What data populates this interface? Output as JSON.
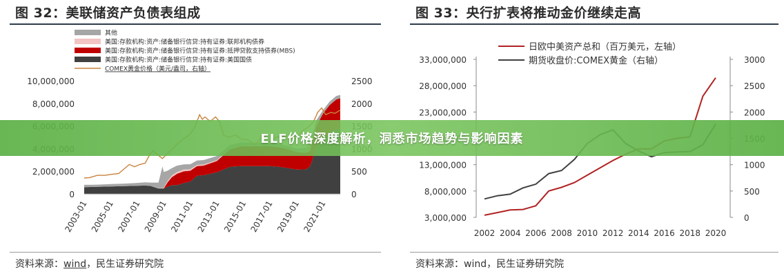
{
  "left": {
    "title": "图 32：美联储资产负债表组成",
    "source_prefix": "资料来源：",
    "source_wind": "wind",
    "source_suffix": "，民生证券研究院",
    "legend": [
      {
        "label": "其他",
        "color": "#a6a6a6",
        "kind": "box"
      },
      {
        "label": "美国:存款机构:资产:储备银行信贷:持有证券:联邦机构债券",
        "color": "#f2c4c4",
        "kind": "box"
      },
      {
        "label": "美国:存款机构:资产:储备银行信贷:持有证券:抵押贷款支持债券(MBS)",
        "color": "#c00000",
        "kind": "box"
      },
      {
        "label": "美国:存款机构:资产:储备银行信贷:持有证券:美国国债",
        "color": "#404040",
        "kind": "box"
      },
      {
        "label": "COMEX黄金价格（美元/盎司，右轴）",
        "color": "#c8823c",
        "kind": "line"
      }
    ]
  },
  "right": {
    "title": "图 33：央行扩表将推动金价继续走高",
    "source_prefix": "资料来源：",
    "source_wind": "wind",
    "source_suffix": "，民生证券研究院",
    "legend": [
      {
        "label": "日欧中美资产总和（百万美元，左轴）",
        "color": "#b22222"
      },
      {
        "label": "期货收盘价:COMEX黄金（右轴）",
        "color": "#404040"
      }
    ]
  },
  "banner": {
    "text": "ELF价格深度解析，洞悉市场趋势与影响因素"
  },
  "chart_data": [
    {
      "type": "area",
      "title": "图 32：美联储资产负债表组成",
      "x_ticks": [
        "2003-01",
        "2005-01",
        "2007-01",
        "2009-01",
        "2011-01",
        "2013-01",
        "2015-01",
        "2017-01",
        "2019-01",
        "2021-01"
      ],
      "x_range": [
        2003.0,
        2022.3
      ],
      "y_left_ticks": [
        "0",
        "2,000,000",
        "4,000,000",
        "6,000,000",
        "8,000,000",
        "10,000,000"
      ],
      "y_left_range": [
        0,
        10000000
      ],
      "y_right_ticks": [
        "0",
        "500",
        "1000",
        "1500",
        "2000",
        "2500"
      ],
      "y_right_range": [
        0,
        2500
      ],
      "x": [
        2003.0,
        2004.0,
        2005.0,
        2006.0,
        2007.0,
        2007.6,
        2008.0,
        2008.6,
        2008.9,
        2009.0,
        2009.3,
        2009.6,
        2010.0,
        2010.5,
        2011.0,
        2011.5,
        2012.0,
        2013.0,
        2014.0,
        2014.8,
        2015.0,
        2016.0,
        2017.0,
        2017.8,
        2018.5,
        2019.0,
        2019.7,
        2020.0,
        2020.2,
        2020.5,
        2021.0,
        2021.5,
        2022.0,
        2022.3
      ],
      "series": [
        {
          "name": "美国:存款机构:资产:储备银行信贷:持有证券:美国国债",
          "color": "#404040",
          "values": [
            600000,
            620000,
            650000,
            680000,
            720000,
            740000,
            700000,
            480000,
            480000,
            480000,
            640000,
            770000,
            780000,
            950000,
            1100000,
            1600000,
            1650000,
            1900000,
            2400000,
            2460000,
            2460000,
            2460000,
            2460000,
            2380000,
            2250000,
            2150000,
            2170000,
            2400000,
            3000000,
            4200000,
            4900000,
            5400000,
            5700000,
            5750000
          ]
        },
        {
          "name": "美国:存款机构:资产:储备银行信贷:持有证券:抵押贷款支持债券(MBS)",
          "color": "#c00000",
          "values": [
            0,
            0,
            0,
            0,
            0,
            0,
            0,
            0,
            0,
            0,
            400000,
            700000,
            1000000,
            1050000,
            950000,
            850000,
            850000,
            1000000,
            1550000,
            1750000,
            1750000,
            1750000,
            1750000,
            1720000,
            1650000,
            1550000,
            1450000,
            1400000,
            1500000,
            1800000,
            2200000,
            2450000,
            2650000,
            2700000
          ]
        },
        {
          "name": "美国:存款机构:资产:储备银行信贷:持有证券:联邦机构债券",
          "color": "#f2c4c4",
          "values": [
            0,
            0,
            0,
            0,
            0,
            0,
            0,
            20000,
            40000,
            60000,
            120000,
            150000,
            160000,
            150000,
            130000,
            110000,
            100000,
            70000,
            45000,
            35000,
            33000,
            20000,
            5000,
            3000,
            2500,
            2500,
            2500,
            2500,
            2500,
            2500,
            2500,
            2500,
            2500,
            2500
          ]
        },
        {
          "name": "其他",
          "color": "#a6a6a6",
          "values": [
            200000,
            200000,
            220000,
            230000,
            250000,
            280000,
            300000,
            500000,
            1900000,
            1400000,
            900000,
            650000,
            560000,
            460000,
            440000,
            390000,
            390000,
            380000,
            320000,
            300000,
            300000,
            300000,
            300000,
            280000,
            270000,
            300000,
            450000,
            500000,
            600000,
            500000,
            300000,
            300000,
            300000,
            300000
          ]
        }
      ],
      "line": {
        "name": "COMEX黄金价格（美元/盎司，右轴）",
        "axis": "right",
        "color": "#c8823c",
        "x": [
          2003.0,
          2003.4,
          2004.0,
          2004.6,
          2005.0,
          2005.6,
          2006.0,
          2006.4,
          2006.8,
          2007.2,
          2007.6,
          2008.0,
          2008.2,
          2008.6,
          2008.9,
          2009.3,
          2009.7,
          2010.0,
          2010.4,
          2010.9,
          2011.3,
          2011.7,
          2011.9,
          2012.1,
          2012.5,
          2012.9,
          2013.2,
          2013.5,
          2013.9,
          2014.4,
          2014.9,
          2015.3,
          2015.9,
          2016.5,
          2016.9,
          2017.5,
          2017.9,
          2018.5,
          2018.9,
          2019.5,
          2019.9,
          2020.3,
          2020.6,
          2020.9,
          2021.2,
          2021.6,
          2021.9,
          2022.3
        ],
        "y": [
          350,
          360,
          410,
          410,
          430,
          450,
          550,
          650,
          600,
          650,
          680,
          900,
          950,
          850,
          780,
          900,
          1000,
          1100,
          1200,
          1300,
          1450,
          1750,
          1650,
          1700,
          1600,
          1700,
          1600,
          1300,
          1250,
          1300,
          1200,
          1200,
          1080,
          1300,
          1150,
          1250,
          1280,
          1250,
          1220,
          1400,
          1480,
          1600,
          1800,
          1900,
          1750,
          1800,
          1780,
          1850
        ]
      }
    },
    {
      "type": "line",
      "title": "图 33：央行扩表将推动金价继续走高",
      "x": [
        2002,
        2003,
        2004,
        2005,
        2006,
        2007,
        2008,
        2009,
        2010,
        2011,
        2012,
        2013,
        2014,
        2015,
        2016,
        2017,
        2018,
        2019,
        2020
      ],
      "x_ticks": [
        "2002",
        "2004",
        "2006",
        "2008",
        "2010",
        "2012",
        "2014",
        "2016",
        "2018",
        "2020"
      ],
      "y_left_ticks": [
        "3,000,000",
        "8,000,000",
        "13,000,000",
        "18,000,000",
        "23,000,000",
        "28,000,000",
        "33,000,000"
      ],
      "y_left_range": [
        3000000,
        33000000
      ],
      "y_right_ticks": [
        "0",
        "500",
        "1000",
        "1500",
        "2000",
        "2500",
        "3000"
      ],
      "y_right_range": [
        0,
        3000
      ],
      "series": [
        {
          "name": "日欧中美资产总和（百万美元，左轴）",
          "axis": "left",
          "color": "#b22222",
          "values": [
            3400000,
            3900000,
            4400000,
            4500000,
            5200000,
            8000000,
            8700000,
            9600000,
            11000000,
            12400000,
            13800000,
            15000000,
            16000000,
            16000000,
            17500000,
            18000000,
            18300000,
            26000000,
            29500000
          ]
        },
        {
          "name": "期货收盘价:COMEX黄金（右轴）",
          "axis": "right",
          "color": "#404040",
          "values": [
            350,
            410,
            440,
            560,
            630,
            830,
            890,
            1100,
            1400,
            1570,
            1660,
            1400,
            1260,
            1150,
            1230,
            1240,
            1250,
            1380,
            1770
          ]
        }
      ]
    }
  ]
}
